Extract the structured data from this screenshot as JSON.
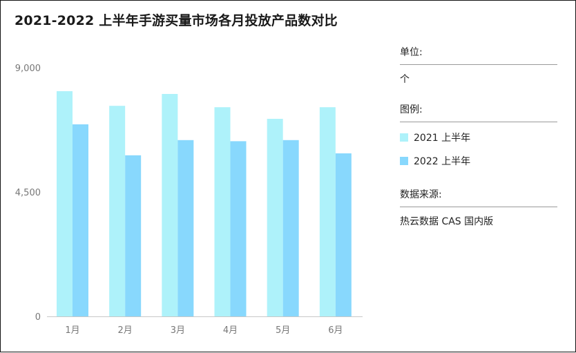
{
  "title": "2021-2022 上半年手游买量市场各月投放产品数对比",
  "side": {
    "unit_header": "单位:",
    "unit_value": "个",
    "legend_header": "图例:",
    "source_header": "数据来源:",
    "source_value": "热云数据 CAS 国内版"
  },
  "chart_data": {
    "type": "bar",
    "title": "2021-2022 上半年手游买量市场各月投放产品数对比",
    "categories": [
      "1月",
      "2月",
      "3月",
      "4月",
      "5月",
      "6月"
    ],
    "series": [
      {
        "name": "2021 上半年",
        "color": "#aef2fa",
        "values": [
          8150,
          7620,
          8050,
          7570,
          7150,
          7570
        ]
      },
      {
        "name": "2022 上半年",
        "color": "#88d8fd",
        "values": [
          6950,
          5830,
          6380,
          6340,
          6380,
          5900
        ]
      }
    ],
    "yticks": [
      0,
      4500,
      9000
    ],
    "ytick_labels": [
      "0",
      "4,500",
      "9,000"
    ],
    "ylim": [
      0,
      9000
    ],
    "xlabel": "",
    "ylabel": "",
    "grid": false,
    "legend_position": "right"
  }
}
